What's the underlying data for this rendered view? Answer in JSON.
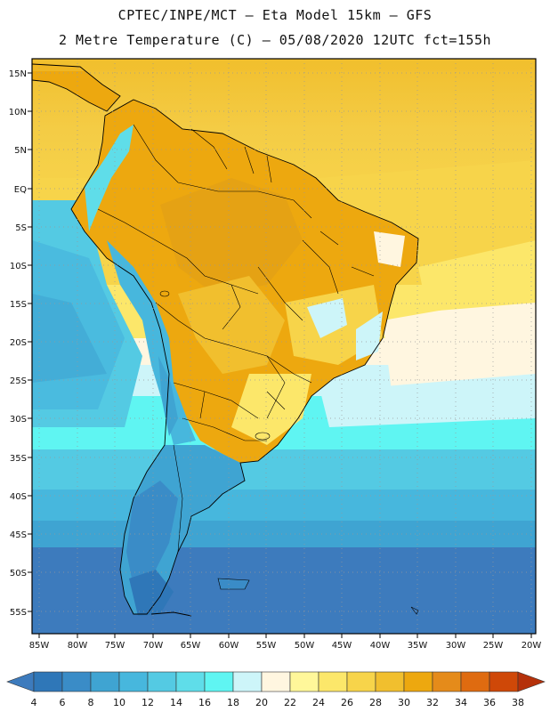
{
  "header": {
    "title_line1": "CPTEC/INPE/MCT –  Eta Model 15km – GFS",
    "title_line2": "2 Metre Temperature (C) – 05/08/2020 12UTC fct=155h"
  },
  "map": {
    "lat_ticks": [
      "15N",
      "10N",
      "5N",
      "EQ",
      "5S",
      "10S",
      "15S",
      "20S",
      "25S",
      "30S",
      "35S",
      "40S",
      "45S",
      "50S",
      "55S"
    ],
    "lon_ticks": [
      "85W",
      "80W",
      "75W",
      "70W",
      "65W",
      "60W",
      "55W",
      "50W",
      "45W",
      "40W",
      "35W",
      "30W",
      "25W",
      "20W"
    ],
    "lat_range": [
      15,
      -55
    ],
    "lon_range": [
      -85,
      -20
    ]
  },
  "colorbar": {
    "labels": [
      "4",
      "6",
      "8",
      "10",
      "12",
      "14",
      "16",
      "18",
      "20",
      "22",
      "24",
      "26",
      "28",
      "30",
      "32",
      "34",
      "36",
      "38"
    ],
    "colors": [
      "#3d7bbd",
      "#2f77b8",
      "#3a8cc7",
      "#3fa4d2",
      "#47b7dd",
      "#54cae3",
      "#5fdde9",
      "#5ff5f2",
      "#cdf5f9",
      "#fff6e0",
      "#fff79a",
      "#fce76a",
      "#f7d44a",
      "#f1bf2e",
      "#eda80f",
      "#e58b1a",
      "#df6b10",
      "#cf4808",
      "#b5310a"
    ]
  }
}
